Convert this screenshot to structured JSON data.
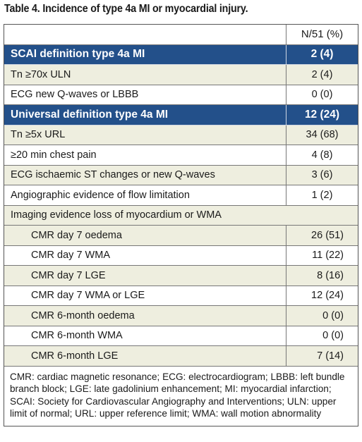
{
  "title": "Table 4. Incidence of type 4a MI or myocardial injury.",
  "header": {
    "value_col": "N/51 (%)"
  },
  "rows": [
    {
      "label": "SCAI definition type 4a MI",
      "value": "2 (4)"
    },
    {
      "label": "Tn ≥70x ULN",
      "value": "2 (4)"
    },
    {
      "label": "ECG new Q-waves or LBBB",
      "value": "0 (0)"
    },
    {
      "label": "Universal definition type 4a MI",
      "value": "12 (24)"
    },
    {
      "label": "Tn ≥5x URL",
      "value": "34 (68)"
    },
    {
      "label": "≥20 min chest pain",
      "value": "4 (8)"
    },
    {
      "label": "ECG ischaemic ST changes or new Q-waves",
      "value": "3 (6)"
    },
    {
      "label": "Angiographic evidence of flow limitation",
      "value": "1 (2)"
    },
    {
      "label": "Imaging evidence loss of myocardium or WMA"
    },
    {
      "label": "CMR day 7 oedema",
      "value": "26 (51)"
    },
    {
      "label": "CMR day 7 WMA",
      "value": "11 (22)"
    },
    {
      "label": "CMR day 7 LGE",
      "value": "8 (16)"
    },
    {
      "label": "CMR day 7 WMA or LGE",
      "value": "12 (24)"
    },
    {
      "label": "CMR 6-month oedema",
      "value": "0 (0)"
    },
    {
      "label": "CMR 6-month WMA",
      "value": "0 (0)"
    },
    {
      "label": "CMR 6-month LGE",
      "value": "7 (14)"
    }
  ],
  "footnote": "CMR: cardiac magnetic resonance; ECG: electrocardiogram; LBBB: left bundle branch block; LGE: late gadolinium enhancement; MI: myocardial infarction; SCAI: Society for Cardiovascular Angiography and Interventions; ULN: upper limit of normal; URL: upper reference limit; WMA: wall motion abnormality",
  "colors": {
    "section_bg": "#23508a",
    "row_tint": "#eeeedf"
  }
}
